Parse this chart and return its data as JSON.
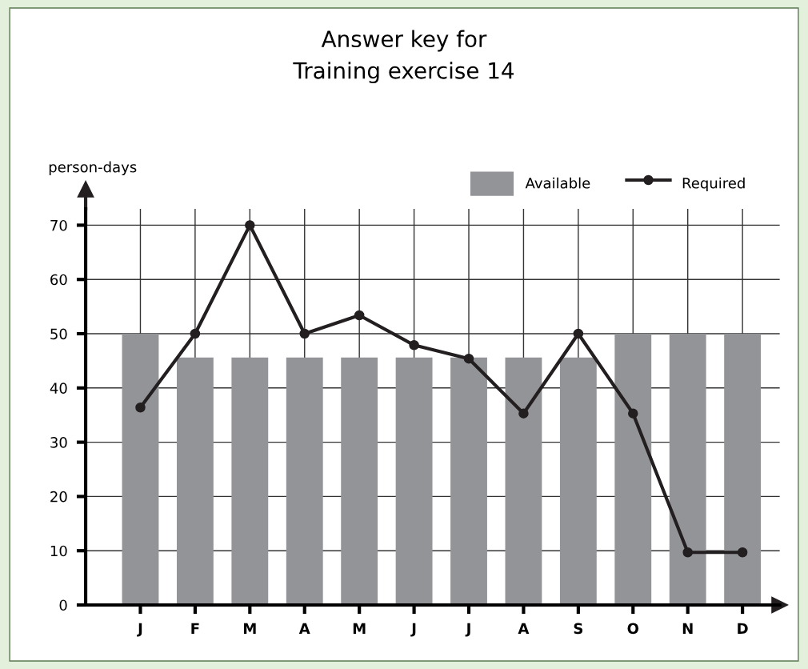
{
  "chart_data": {
    "type": "bar",
    "title": "Answer key for\nTraining exercise 14",
    "ylabel": "person-days",
    "categories": [
      "J",
      "F",
      "M",
      "A",
      "M",
      "J",
      "J",
      "A",
      "S",
      "O",
      "N",
      "D"
    ],
    "series": [
      {
        "name": "Available",
        "type": "bar",
        "color": "#939498",
        "values": [
          50,
          45.6,
          45.6,
          45.6,
          45.6,
          45.6,
          45.6,
          45.6,
          45.6,
          50,
          50,
          50
        ]
      },
      {
        "name": "Required",
        "type": "line",
        "color": "#231f20",
        "marker": "circle",
        "line_style": "solid",
        "values": [
          36.4,
          50,
          70,
          50,
          53.4,
          47.9,
          45.4,
          35.3,
          50,
          35.3,
          9.7,
          9.7
        ]
      }
    ],
    "ylim": [
      0,
      73
    ],
    "yticks": [
      0,
      10,
      20,
      30,
      40,
      50,
      60,
      70
    ],
    "grid": true,
    "legend": "top right"
  }
}
